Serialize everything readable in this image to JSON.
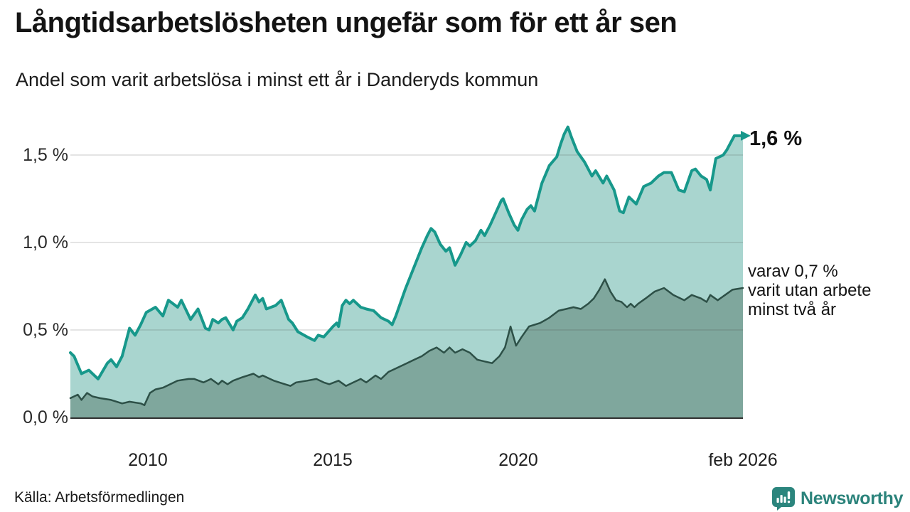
{
  "header": {
    "title": "Långtidsarbetslösheten ungefär som för ett år sen",
    "subtitle": "Andel som varit arbetslösa i minst ett år i Danderyds kommun"
  },
  "chart_data": {
    "type": "area",
    "title": "Långtidsarbetslösheten ungefär som för ett år sen",
    "subtitle": "Andel som varit arbetslösa i minst ett år i Danderyds kommun",
    "unit": "%",
    "grid": "horizontal",
    "x_axis": {
      "range": [
        2007.9,
        2026.083
      ],
      "ticks": [
        {
          "label": "2010",
          "year": 2010
        },
        {
          "label": "2015",
          "year": 2015
        },
        {
          "label": "2020",
          "year": 2020
        },
        {
          "label": "feb 2026",
          "year": 2026.083
        }
      ]
    },
    "y_axis": {
      "range": [
        0,
        1.7
      ],
      "ticks": [
        {
          "label": "0,0 %",
          "value": 0.0
        },
        {
          "label": "0,5 %",
          "value": 0.5
        },
        {
          "label": "1,0 %",
          "value": 1.0
        },
        {
          "label": "1,5 %",
          "value": 1.5
        }
      ]
    },
    "annotations": {
      "end_value": "1,6 %",
      "secondary": [
        "varav 0,7 %",
        "varit utan arbete",
        "minst två år"
      ]
    },
    "series": [
      {
        "id": "unemployed-min-one-year",
        "color": "#17988b",
        "fill": "#a9d5cf",
        "line_width": 4,
        "end_value_pct": 1.6,
        "points": [
          [
            2007.9,
            0.37
          ],
          [
            2008.0,
            0.35
          ],
          [
            2008.2,
            0.25
          ],
          [
            2008.4,
            0.27
          ],
          [
            2008.65,
            0.22
          ],
          [
            2008.9,
            0.31
          ],
          [
            2009.0,
            0.33
          ],
          [
            2009.15,
            0.29
          ],
          [
            2009.3,
            0.35
          ],
          [
            2009.5,
            0.51
          ],
          [
            2009.65,
            0.47
          ],
          [
            2009.8,
            0.53
          ],
          [
            2009.95,
            0.6
          ],
          [
            2010.2,
            0.63
          ],
          [
            2010.4,
            0.58
          ],
          [
            2010.55,
            0.67
          ],
          [
            2010.8,
            0.63
          ],
          [
            2010.9,
            0.67
          ],
          [
            2011.15,
            0.56
          ],
          [
            2011.35,
            0.62
          ],
          [
            2011.55,
            0.51
          ],
          [
            2011.65,
            0.5
          ],
          [
            2011.75,
            0.56
          ],
          [
            2011.9,
            0.54
          ],
          [
            2012.0,
            0.56
          ],
          [
            2012.1,
            0.57
          ],
          [
            2012.3,
            0.5
          ],
          [
            2012.4,
            0.55
          ],
          [
            2012.55,
            0.57
          ],
          [
            2012.7,
            0.62
          ],
          [
            2012.9,
            0.7
          ],
          [
            2013.0,
            0.66
          ],
          [
            2013.1,
            0.68
          ],
          [
            2013.2,
            0.62
          ],
          [
            2013.45,
            0.64
          ],
          [
            2013.6,
            0.67
          ],
          [
            2013.8,
            0.56
          ],
          [
            2013.9,
            0.54
          ],
          [
            2014.05,
            0.49
          ],
          [
            2014.3,
            0.46
          ],
          [
            2014.5,
            0.44
          ],
          [
            2014.6,
            0.47
          ],
          [
            2014.75,
            0.46
          ],
          [
            2015.0,
            0.52
          ],
          [
            2015.1,
            0.54
          ],
          [
            2015.15,
            0.52
          ],
          [
            2015.25,
            0.64
          ],
          [
            2015.35,
            0.67
          ],
          [
            2015.45,
            0.65
          ],
          [
            2015.55,
            0.67
          ],
          [
            2015.75,
            0.63
          ],
          [
            2015.9,
            0.62
          ],
          [
            2016.1,
            0.61
          ],
          [
            2016.3,
            0.57
          ],
          [
            2016.5,
            0.55
          ],
          [
            2016.6,
            0.53
          ],
          [
            2016.7,
            0.58
          ],
          [
            2016.8,
            0.64
          ],
          [
            2016.95,
            0.73
          ],
          [
            2017.1,
            0.81
          ],
          [
            2017.25,
            0.89
          ],
          [
            2017.4,
            0.97
          ],
          [
            2017.55,
            1.04
          ],
          [
            2017.65,
            1.08
          ],
          [
            2017.75,
            1.06
          ],
          [
            2017.9,
            0.99
          ],
          [
            2018.05,
            0.95
          ],
          [
            2018.15,
            0.97
          ],
          [
            2018.3,
            0.87
          ],
          [
            2018.45,
            0.93
          ],
          [
            2018.6,
            1.0
          ],
          [
            2018.7,
            0.98
          ],
          [
            2018.85,
            1.01
          ],
          [
            2019.0,
            1.07
          ],
          [
            2019.1,
            1.04
          ],
          [
            2019.25,
            1.1
          ],
          [
            2019.4,
            1.17
          ],
          [
            2019.55,
            1.24
          ],
          [
            2019.6,
            1.25
          ],
          [
            2019.75,
            1.17
          ],
          [
            2019.9,
            1.1
          ],
          [
            2020.0,
            1.07
          ],
          [
            2020.1,
            1.13
          ],
          [
            2020.25,
            1.19
          ],
          [
            2020.35,
            1.21
          ],
          [
            2020.45,
            1.18
          ],
          [
            2020.55,
            1.26
          ],
          [
            2020.65,
            1.34
          ],
          [
            2020.85,
            1.44
          ],
          [
            2021.05,
            1.49
          ],
          [
            2021.15,
            1.56
          ],
          [
            2021.25,
            1.62
          ],
          [
            2021.35,
            1.66
          ],
          [
            2021.45,
            1.6
          ],
          [
            2021.6,
            1.52
          ],
          [
            2021.8,
            1.46
          ],
          [
            2022.0,
            1.38
          ],
          [
            2022.1,
            1.41
          ],
          [
            2022.3,
            1.34
          ],
          [
            2022.4,
            1.38
          ],
          [
            2022.6,
            1.3
          ],
          [
            2022.75,
            1.18
          ],
          [
            2022.85,
            1.17
          ],
          [
            2023.0,
            1.26
          ],
          [
            2023.2,
            1.22
          ],
          [
            2023.4,
            1.32
          ],
          [
            2023.6,
            1.34
          ],
          [
            2023.8,
            1.38
          ],
          [
            2023.95,
            1.4
          ],
          [
            2024.15,
            1.4
          ],
          [
            2024.35,
            1.3
          ],
          [
            2024.5,
            1.29
          ],
          [
            2024.7,
            1.41
          ],
          [
            2024.8,
            1.42
          ],
          [
            2024.95,
            1.38
          ],
          [
            2025.1,
            1.36
          ],
          [
            2025.2,
            1.3
          ],
          [
            2025.35,
            1.48
          ],
          [
            2025.55,
            1.5
          ],
          [
            2025.65,
            1.53
          ],
          [
            2025.85,
            1.61
          ],
          [
            2026.083,
            1.61
          ]
        ]
      },
      {
        "id": "unemployed-min-two-years",
        "color": "#2d5047",
        "fill": "#7fa79d",
        "line_width": 2.5,
        "end_value_pct": 0.7,
        "points": [
          [
            2007.9,
            0.11
          ],
          [
            2008.1,
            0.13
          ],
          [
            2008.2,
            0.1
          ],
          [
            2008.35,
            0.14
          ],
          [
            2008.5,
            0.12
          ],
          [
            2008.7,
            0.11
          ],
          [
            2009.0,
            0.1
          ],
          [
            2009.3,
            0.08
          ],
          [
            2009.5,
            0.09
          ],
          [
            2009.8,
            0.08
          ],
          [
            2009.9,
            0.07
          ],
          [
            2010.05,
            0.14
          ],
          [
            2010.2,
            0.16
          ],
          [
            2010.4,
            0.17
          ],
          [
            2010.8,
            0.21
          ],
          [
            2011.1,
            0.22
          ],
          [
            2011.25,
            0.22
          ],
          [
            2011.5,
            0.2
          ],
          [
            2011.7,
            0.22
          ],
          [
            2011.9,
            0.19
          ],
          [
            2012.0,
            0.21
          ],
          [
            2012.15,
            0.19
          ],
          [
            2012.3,
            0.21
          ],
          [
            2012.55,
            0.23
          ],
          [
            2012.85,
            0.25
          ],
          [
            2013.0,
            0.23
          ],
          [
            2013.1,
            0.24
          ],
          [
            2013.4,
            0.21
          ],
          [
            2013.7,
            0.19
          ],
          [
            2013.85,
            0.18
          ],
          [
            2014.0,
            0.2
          ],
          [
            2014.3,
            0.21
          ],
          [
            2014.55,
            0.22
          ],
          [
            2014.75,
            0.2
          ],
          [
            2014.9,
            0.19
          ],
          [
            2015.15,
            0.21
          ],
          [
            2015.35,
            0.18
          ],
          [
            2015.55,
            0.2
          ],
          [
            2015.75,
            0.22
          ],
          [
            2015.9,
            0.2
          ],
          [
            2016.15,
            0.24
          ],
          [
            2016.3,
            0.22
          ],
          [
            2016.5,
            0.26
          ],
          [
            2016.7,
            0.28
          ],
          [
            2017.0,
            0.31
          ],
          [
            2017.2,
            0.33
          ],
          [
            2017.4,
            0.35
          ],
          [
            2017.6,
            0.38
          ],
          [
            2017.8,
            0.4
          ],
          [
            2018.0,
            0.37
          ],
          [
            2018.15,
            0.4
          ],
          [
            2018.3,
            0.37
          ],
          [
            2018.5,
            0.39
          ],
          [
            2018.7,
            0.37
          ],
          [
            2018.9,
            0.33
          ],
          [
            2019.1,
            0.32
          ],
          [
            2019.3,
            0.31
          ],
          [
            2019.5,
            0.35
          ],
          [
            2019.65,
            0.4
          ],
          [
            2019.8,
            0.52
          ],
          [
            2019.95,
            0.41
          ],
          [
            2020.1,
            0.46
          ],
          [
            2020.3,
            0.52
          ],
          [
            2020.6,
            0.54
          ],
          [
            2020.85,
            0.57
          ],
          [
            2021.1,
            0.61
          ],
          [
            2021.3,
            0.62
          ],
          [
            2021.5,
            0.63
          ],
          [
            2021.7,
            0.62
          ],
          [
            2021.9,
            0.65
          ],
          [
            2022.05,
            0.68
          ],
          [
            2022.2,
            0.73
          ],
          [
            2022.35,
            0.79
          ],
          [
            2022.5,
            0.72
          ],
          [
            2022.65,
            0.67
          ],
          [
            2022.8,
            0.66
          ],
          [
            2022.95,
            0.63
          ],
          [
            2023.05,
            0.65
          ],
          [
            2023.15,
            0.63
          ],
          [
            2023.25,
            0.65
          ],
          [
            2023.45,
            0.68
          ],
          [
            2023.7,
            0.72
          ],
          [
            2023.95,
            0.74
          ],
          [
            2024.2,
            0.7
          ],
          [
            2024.5,
            0.67
          ],
          [
            2024.7,
            0.7
          ],
          [
            2024.95,
            0.68
          ],
          [
            2025.1,
            0.66
          ],
          [
            2025.2,
            0.7
          ],
          [
            2025.4,
            0.67
          ],
          [
            2025.6,
            0.7
          ],
          [
            2025.8,
            0.73
          ],
          [
            2026.083,
            0.74
          ]
        ]
      }
    ]
  },
  "footer": {
    "source": "Källa: Arbetsförmedlingen",
    "brand": "Newsworthy"
  }
}
